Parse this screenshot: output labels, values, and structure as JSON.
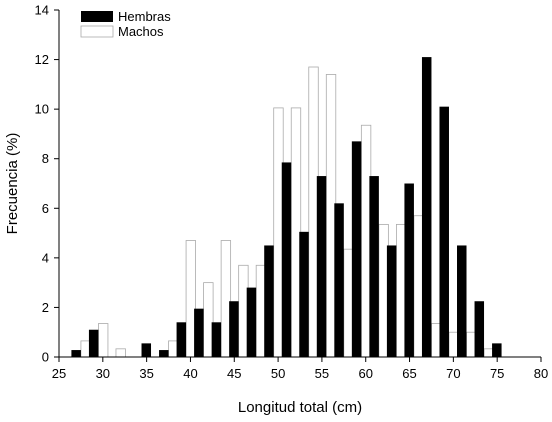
{
  "chart_data": {
    "type": "bar",
    "xlabel": "Longitud total (cm)",
    "ylabel": "Frecuencia (%)",
    "xlim": [
      25,
      80
    ],
    "ylim": [
      0,
      14
    ],
    "xticks": [
      25,
      30,
      35,
      40,
      45,
      50,
      55,
      60,
      65,
      70,
      75,
      80
    ],
    "yticks": [
      0,
      2,
      4,
      6,
      8,
      10,
      12,
      14
    ],
    "bin_width": 2,
    "grid": false,
    "legend_position": "top-left",
    "colors": {
      "hembras": "#000000",
      "machos": "#ffffff",
      "outline": "#aaaaaa"
    },
    "series": [
      {
        "name": "Hembras",
        "x": [
          28,
          30,
          32,
          34,
          36,
          38,
          40,
          42,
          44,
          46,
          48,
          50,
          52,
          54,
          56,
          58,
          60,
          62,
          64,
          66,
          68,
          70,
          72,
          74,
          76
        ],
        "values": [
          0.28,
          1.1,
          0,
          0,
          0.55,
          0.28,
          1.4,
          1.95,
          1.4,
          2.25,
          2.8,
          4.5,
          7.85,
          5.05,
          7.3,
          6.2,
          8.7,
          7.3,
          4.5,
          7.0,
          12.1,
          10.1,
          4.5,
          2.25,
          0.55
        ]
      },
      {
        "name": "Machos",
        "x": [
          28,
          30,
          32,
          34,
          36,
          38,
          40,
          42,
          44,
          46,
          48,
          50,
          52,
          54,
          56,
          58,
          60,
          62,
          64,
          66,
          68,
          70,
          72,
          74,
          76
        ],
        "values": [
          0.65,
          1.35,
          0.33,
          0,
          0,
          0.65,
          4.7,
          3.0,
          4.7,
          3.7,
          3.7,
          10.05,
          10.05,
          11.7,
          11.4,
          4.35,
          9.35,
          5.35,
          5.35,
          5.7,
          1.35,
          1.0,
          1.0,
          0.33,
          0
        ]
      }
    ]
  }
}
